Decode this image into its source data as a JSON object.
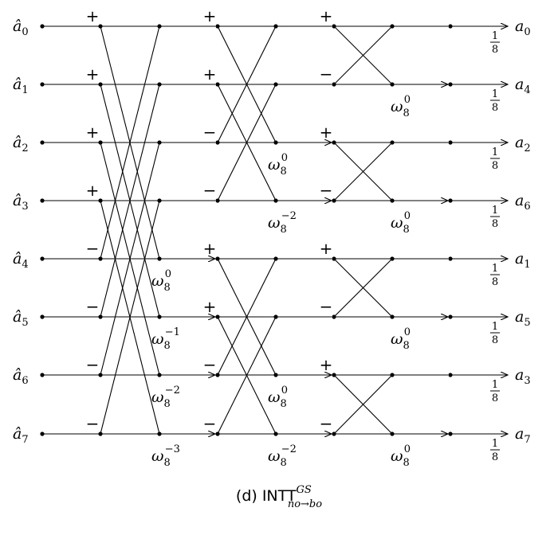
{
  "inputs": [
    "â0",
    "â1",
    "â2",
    "â3",
    "â4",
    "â5",
    "â6",
    "â7"
  ],
  "outputs": [
    "a0",
    "a4",
    "a2",
    "a6",
    "a1",
    "a5",
    "a3",
    "a7"
  ],
  "stage1_signs": [
    "+",
    "+",
    "+",
    "+",
    "−",
    "−",
    "−",
    "−"
  ],
  "stage2_signs": [
    "+",
    "+",
    "−",
    "−",
    "+",
    "+",
    "−",
    "−"
  ],
  "stage3_signs": [
    "+",
    "−",
    "+",
    "−",
    "+",
    "−",
    "+",
    "−"
  ],
  "stage1_twiddles": [
    "0",
    "−1",
    "−2",
    "−3"
  ],
  "stage2_twiddles": [
    "0",
    "−2",
    "0",
    "−2"
  ],
  "stage3_twiddles": [
    "0",
    "0",
    "0",
    "0"
  ],
  "twiddle_base": "ω",
  "twiddle_sub": "8",
  "scale_numerator": "1",
  "scale_denominator": "8",
  "caption": {
    "prefix": "(d) INTT",
    "superscript": "GS",
    "subscript": "no→bo"
  }
}
